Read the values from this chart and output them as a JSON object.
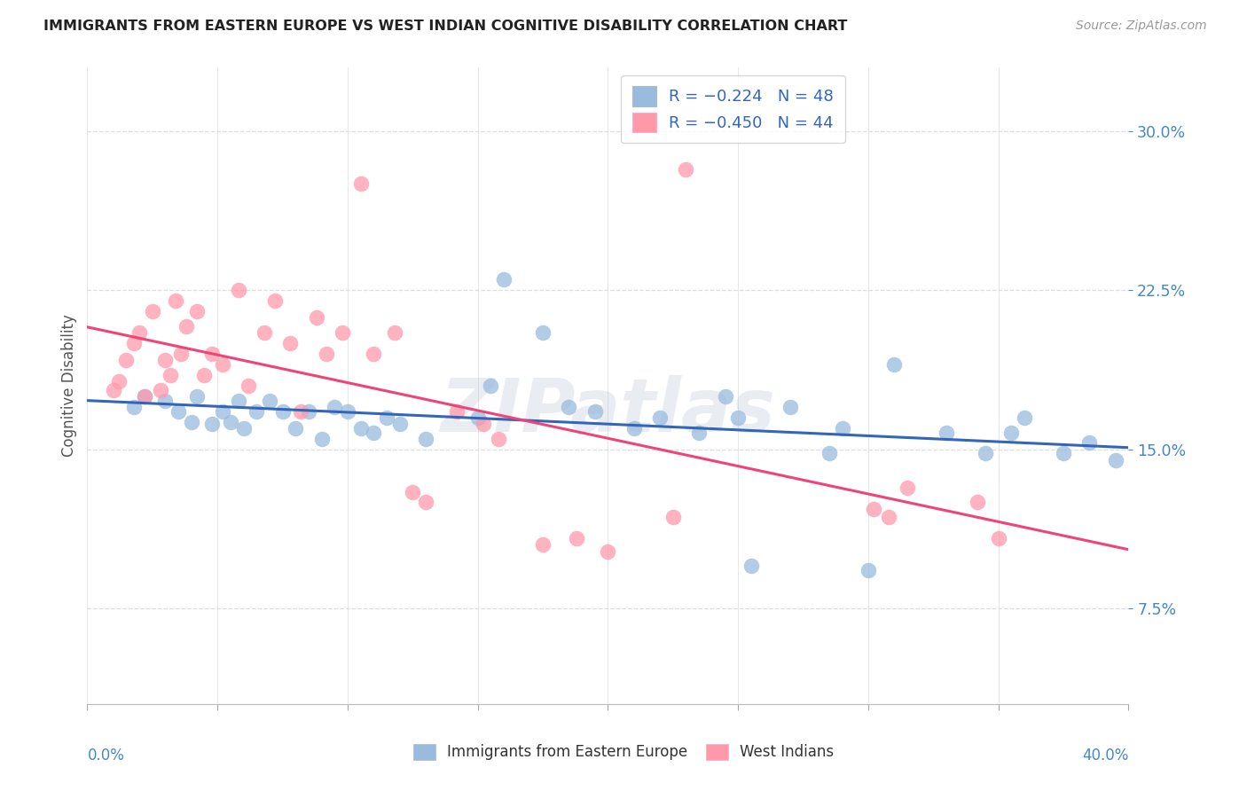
{
  "title": "IMMIGRANTS FROM EASTERN EUROPE VS WEST INDIAN COGNITIVE DISABILITY CORRELATION CHART",
  "source": "Source: ZipAtlas.com",
  "ylabel": "Cognitive Disability",
  "ytick_vals": [
    0.075,
    0.15,
    0.225,
    0.3
  ],
  "ytick_labels": [
    "7.5%",
    "15.0%",
    "22.5%",
    "30.0%"
  ],
  "xtick_vals": [
    0.0,
    0.05,
    0.1,
    0.15,
    0.2,
    0.25,
    0.3,
    0.35,
    0.4
  ],
  "xmin": 0.0,
  "xmax": 0.4,
  "ymin": 0.03,
  "ymax": 0.33,
  "blue_color": "#99BBDD",
  "pink_color": "#FF99AA",
  "blue_line_color": "#3366BB",
  "pink_line_color": "#EE4477",
  "legend_blue_label": "R = −0.224   N = 48",
  "legend_pink_label": "R = −0.450   N = 44",
  "legend_label_blue": "Immigrants from Eastern Europe",
  "legend_label_pink": "West Indians",
  "watermark": "ZIPatlas",
  "blue_x": [
    0.018,
    0.022,
    0.03,
    0.035,
    0.04,
    0.042,
    0.048,
    0.052,
    0.055,
    0.058,
    0.06,
    0.065,
    0.07,
    0.075,
    0.08,
    0.085,
    0.09,
    0.095,
    0.1,
    0.105,
    0.11,
    0.115,
    0.12,
    0.13,
    0.15,
    0.155,
    0.16,
    0.175,
    0.185,
    0.195,
    0.21,
    0.22,
    0.235,
    0.245,
    0.25,
    0.255,
    0.27,
    0.285,
    0.29,
    0.3,
    0.31,
    0.33,
    0.345,
    0.355,
    0.36,
    0.375,
    0.385,
    0.395
  ],
  "blue_y": [
    0.17,
    0.175,
    0.173,
    0.168,
    0.163,
    0.175,
    0.162,
    0.168,
    0.163,
    0.173,
    0.16,
    0.168,
    0.173,
    0.168,
    0.16,
    0.168,
    0.155,
    0.17,
    0.168,
    0.16,
    0.158,
    0.165,
    0.162,
    0.155,
    0.165,
    0.18,
    0.23,
    0.205,
    0.17,
    0.168,
    0.16,
    0.165,
    0.158,
    0.175,
    0.165,
    0.095,
    0.17,
    0.148,
    0.16,
    0.093,
    0.19,
    0.158,
    0.148,
    0.158,
    0.165,
    0.148,
    0.153,
    0.145
  ],
  "pink_x": [
    0.01,
    0.012,
    0.015,
    0.018,
    0.02,
    0.022,
    0.025,
    0.028,
    0.03,
    0.032,
    0.034,
    0.036,
    0.038,
    0.042,
    0.045,
    0.048,
    0.052,
    0.058,
    0.062,
    0.068,
    0.072,
    0.078,
    0.082,
    0.088,
    0.092,
    0.098,
    0.105,
    0.11,
    0.118,
    0.125,
    0.13,
    0.142,
    0.152,
    0.158,
    0.175,
    0.188,
    0.2,
    0.225,
    0.23,
    0.302,
    0.308,
    0.315,
    0.342,
    0.35
  ],
  "pink_y": [
    0.178,
    0.182,
    0.192,
    0.2,
    0.205,
    0.175,
    0.215,
    0.178,
    0.192,
    0.185,
    0.22,
    0.195,
    0.208,
    0.215,
    0.185,
    0.195,
    0.19,
    0.225,
    0.18,
    0.205,
    0.22,
    0.2,
    0.168,
    0.212,
    0.195,
    0.205,
    0.275,
    0.195,
    0.205,
    0.13,
    0.125,
    0.168,
    0.162,
    0.155,
    0.105,
    0.108,
    0.102,
    0.118,
    0.282,
    0.122,
    0.118,
    0.132,
    0.125,
    0.108
  ]
}
